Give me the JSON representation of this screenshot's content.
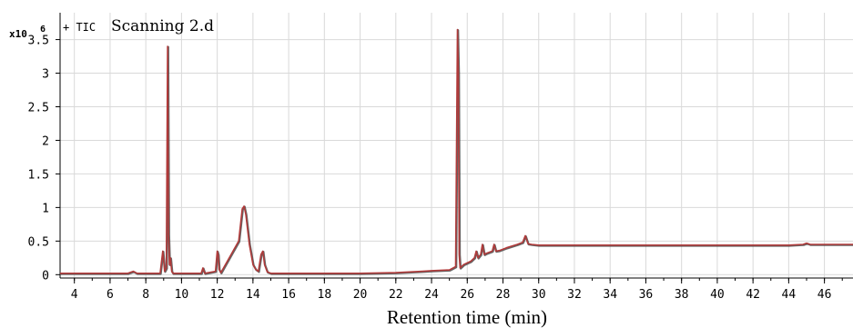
{
  "chart_data": {
    "type": "line",
    "title_prefix": "+ TIC",
    "title": "Scanning 2.d",
    "y_scale_label": "x10",
    "y_scale_exponent": "6",
    "xlabel": "Retention time (min)",
    "ylabel": "",
    "xlim": [
      3.2,
      47.6
    ],
    "ylim": [
      -0.05,
      3.9
    ],
    "x_ticks": [
      4,
      6,
      8,
      10,
      12,
      14,
      16,
      18,
      20,
      22,
      24,
      26,
      28,
      30,
      32,
      34,
      36,
      38,
      40,
      42,
      44,
      46
    ],
    "y_ticks": [
      0,
      0.5,
      1,
      1.5,
      2,
      2.5,
      3,
      3.5
    ],
    "y_tick_labels": [
      "0",
      "0.5",
      "1",
      "1.5",
      "2",
      "2.5",
      "3",
      "3.5"
    ],
    "grid": true,
    "line_color": "#b03a3a",
    "shadow_color": "#404040",
    "series": [
      {
        "x": [
          3.2,
          7.0,
          7.3,
          7.5,
          8.8,
          8.95,
          9.05,
          9.15,
          9.22,
          9.27,
          9.32,
          9.38,
          9.45,
          9.52,
          9.6,
          11.1,
          11.2,
          11.3,
          11.9,
          12.0,
          12.05,
          12.1,
          12.2,
          13.2,
          13.4,
          13.5,
          13.6,
          13.8,
          14.0,
          14.15,
          14.3,
          14.45,
          14.55,
          14.65,
          14.8,
          15.0,
          15.5,
          16.0,
          20.0,
          22.0,
          23.5,
          24.0,
          25.0,
          25.35,
          25.45,
          25.5,
          25.55,
          25.6,
          25.8,
          26.2,
          26.4,
          26.5,
          26.6,
          26.75,
          26.85,
          26.95,
          27.1,
          27.4,
          27.5,
          27.6,
          27.8,
          28.2,
          28.8,
          29.1,
          29.25,
          29.4,
          29.6,
          30.0,
          32.0,
          36.0,
          40.0,
          44.0,
          44.8,
          45.0,
          45.2,
          46.0,
          47.6
        ],
        "y": [
          0.02,
          0.02,
          0.05,
          0.02,
          0.02,
          0.35,
          0.05,
          0.1,
          3.4,
          0.6,
          0.15,
          0.25,
          0.05,
          0.02,
          0.02,
          0.02,
          0.1,
          0.02,
          0.05,
          0.35,
          0.3,
          0.08,
          0.03,
          0.5,
          0.98,
          1.02,
          0.9,
          0.45,
          0.15,
          0.08,
          0.05,
          0.3,
          0.35,
          0.15,
          0.04,
          0.02,
          0.02,
          0.02,
          0.02,
          0.03,
          0.05,
          0.06,
          0.07,
          0.12,
          3.65,
          3.0,
          0.3,
          0.1,
          0.15,
          0.2,
          0.25,
          0.35,
          0.25,
          0.3,
          0.45,
          0.3,
          0.32,
          0.35,
          0.45,
          0.35,
          0.36,
          0.4,
          0.45,
          0.48,
          0.58,
          0.46,
          0.45,
          0.44,
          0.44,
          0.44,
          0.44,
          0.44,
          0.45,
          0.47,
          0.45,
          0.45,
          0.45
        ]
      }
    ]
  }
}
